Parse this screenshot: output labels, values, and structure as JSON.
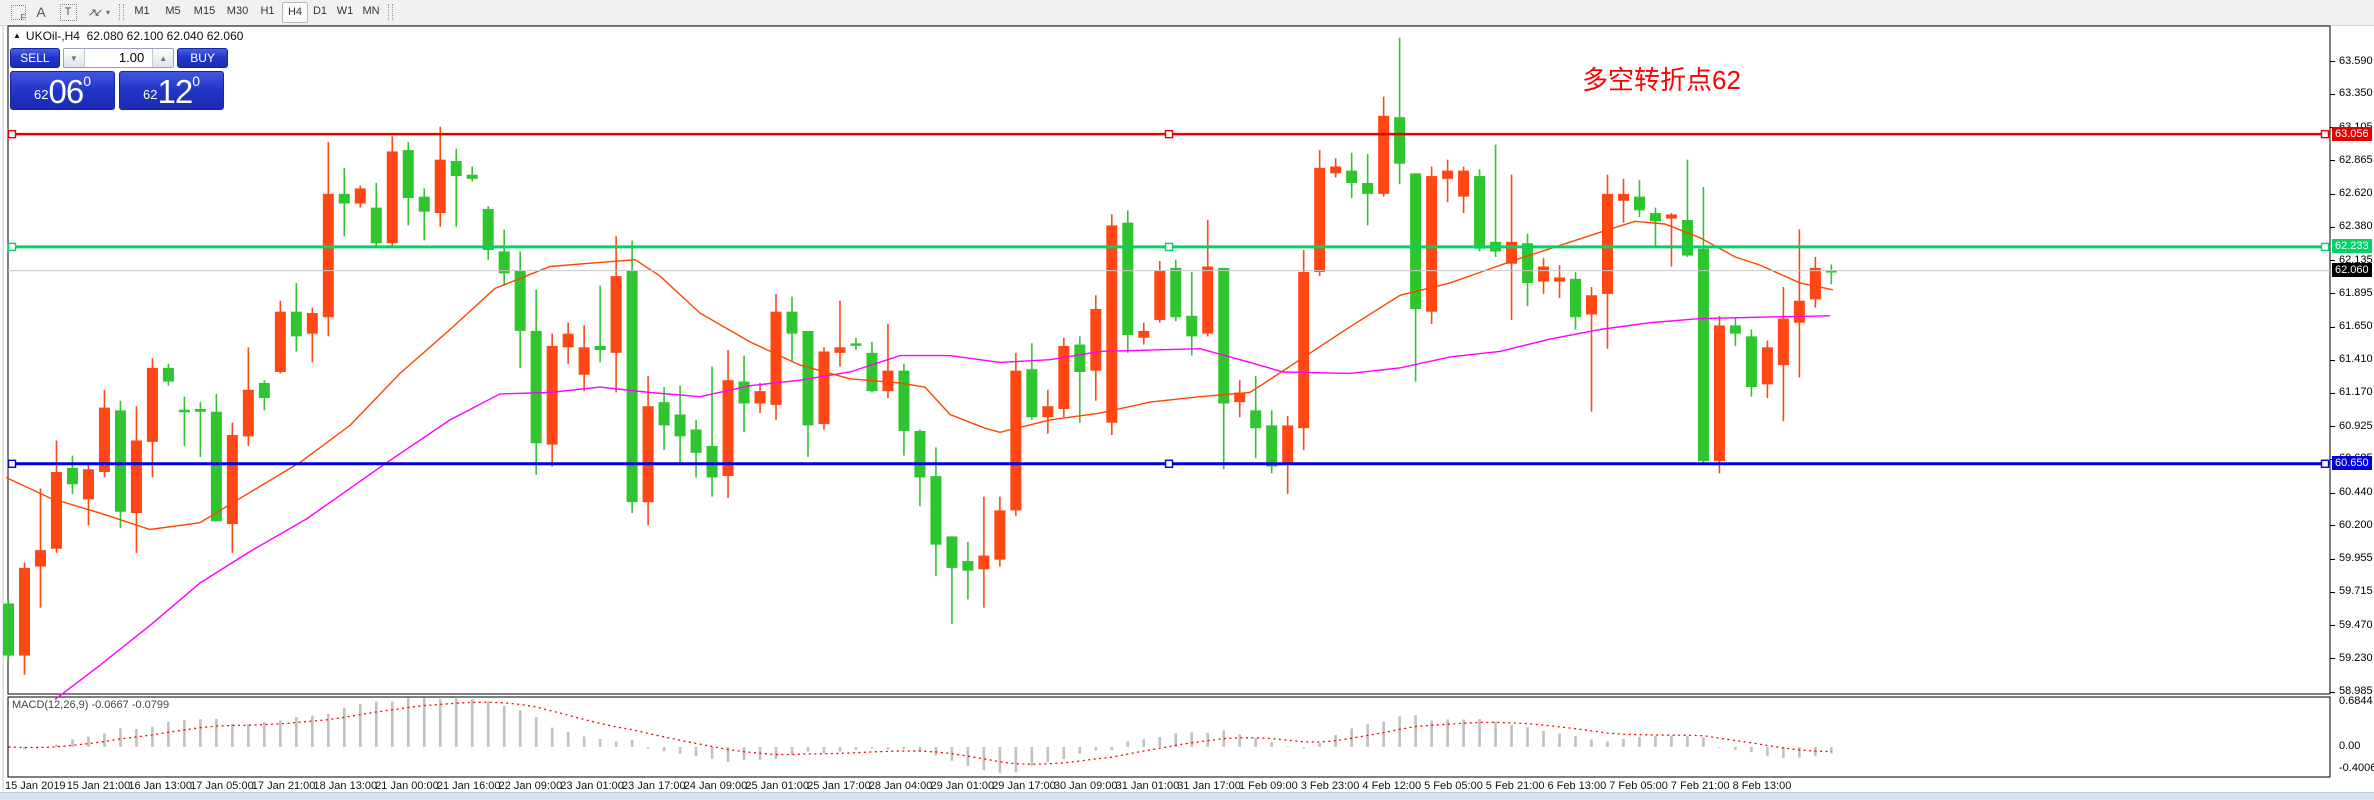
{
  "toolbar": {
    "icons": [
      {
        "name": "indicator-grid-icon",
        "glyph": "F"
      },
      {
        "name": "text-label-icon",
        "glyph": "A"
      },
      {
        "name": "text-box-icon",
        "glyph": "T"
      },
      {
        "name": "arrows-tool-icon",
        "glyph": "↗↙"
      }
    ],
    "timeframes": [
      "M1",
      "M5",
      "M15",
      "M30",
      "H1",
      "H4",
      "D1",
      "W1",
      "MN"
    ],
    "active_timeframe": "H4"
  },
  "quote_bar": {
    "symbol": "UKOil-,H4",
    "ohlc_text": "62.080 62.100 62.040 62.060"
  },
  "trade_panel": {
    "sell_label": "SELL",
    "buy_label": "BUY",
    "volume": "1.00",
    "sell_price": {
      "small": "62",
      "big": "06",
      "sup": "0"
    },
    "buy_price": {
      "small": "62",
      "big": "12",
      "sup": "0"
    }
  },
  "annotation": {
    "text": "多空转折点62",
    "color": "#FF0000"
  },
  "macd_label": "MACD(12,26,9) -0.0667 -0.0799",
  "macd_axis_labels": [
    "0.6844",
    "0.00",
    "-0.4006"
  ],
  "price_axis_labels": [
    "63.590",
    "63.350",
    "63.105",
    "62.865",
    "62.620",
    "62.380",
    "62.135",
    "61.895",
    "61.650",
    "61.410",
    "61.170",
    "60.925",
    "60.685",
    "60.440",
    "60.200",
    "59.955",
    "59.715",
    "59.470",
    "59.230",
    "58.985"
  ],
  "special_price_labels": [
    {
      "value": "63.056",
      "price": 63.056,
      "color": "#e80000"
    },
    {
      "value": "62.233",
      "price": 62.233,
      "color": "#00d464"
    },
    {
      "value": "62.060",
      "price": 62.06,
      "color": "#000000"
    },
    {
      "value": "60.650",
      "price": 60.65,
      "color": "#0000d8"
    }
  ],
  "time_axis_labels": [
    "15 Jan 2019",
    "15 Jan 21:00",
    "16 Jan 13:00",
    "17 Jan 05:00",
    "17 Jan 21:00",
    "18 Jan 13:00",
    "21 Jan 00:00",
    "21 Jan 16:00",
    "22 Jan 09:00",
    "23 Jan 01:00",
    "23 Jan 17:00",
    "24 Jan 09:00",
    "25 Jan 01:00",
    "25 Jan 17:00",
    "28 Jan 04:00",
    "29 Jan 01:00",
    "29 Jan 17:00",
    "30 Jan 09:00",
    "31 Jan 01:00",
    "31 Jan 17:00",
    "1 Feb 09:00",
    "3 Feb 23:00",
    "4 Feb 12:00",
    "5 Feb 05:00",
    "5 Feb 21:00",
    "6 Feb 13:00",
    "7 Feb 05:00",
    "7 Feb 21:00",
    "8 Feb 13:00"
  ],
  "chart_data": {
    "type": "candlestick",
    "symbol": "UKOil-",
    "timeframe": "H4",
    "up_color": "#2fc52f",
    "down_color": "#ff4716",
    "ohlc": [
      [
        59.25,
        59.66,
        59.22,
        59.63
      ],
      [
        59.89,
        59.93,
        59.11,
        59.25
      ],
      [
        60.02,
        60.47,
        59.6,
        59.9
      ],
      [
        60.59,
        60.82,
        60.0,
        60.03
      ],
      [
        60.5,
        60.71,
        60.43,
        60.62
      ],
      [
        60.61,
        60.65,
        60.2,
        60.39
      ],
      [
        61.06,
        61.19,
        60.55,
        60.59
      ],
      [
        60.3,
        61.11,
        60.18,
        61.04
      ],
      [
        60.82,
        61.07,
        60.0,
        60.29
      ],
      [
        61.35,
        61.42,
        60.55,
        60.81
      ],
      [
        61.25,
        61.38,
        61.22,
        61.35
      ],
      [
        61.03,
        61.14,
        60.78,
        61.04
      ],
      [
        61.03,
        61.1,
        60.7,
        61.05
      ],
      [
        60.23,
        61.16,
        60.23,
        61.03
      ],
      [
        60.86,
        60.95,
        60.0,
        60.21
      ],
      [
        61.19,
        61.5,
        60.78,
        60.85
      ],
      [
        61.13,
        61.26,
        61.04,
        61.24
      ],
      [
        61.76,
        61.84,
        61.31,
        61.32
      ],
      [
        61.58,
        61.97,
        61.47,
        61.76
      ],
      [
        61.75,
        61.79,
        61.39,
        61.6
      ],
      [
        62.62,
        63.0,
        61.58,
        61.72
      ],
      [
        62.55,
        62.81,
        62.31,
        62.62
      ],
      [
        62.66,
        62.68,
        62.52,
        62.55
      ],
      [
        62.26,
        62.7,
        62.23,
        62.52
      ],
      [
        62.93,
        63.04,
        62.24,
        62.26
      ],
      [
        62.59,
        63.0,
        62.39,
        62.94
      ],
      [
        62.49,
        62.66,
        62.28,
        62.6
      ],
      [
        62.87,
        63.11,
        62.38,
        62.48
      ],
      [
        62.75,
        62.95,
        62.38,
        62.86
      ],
      [
        62.73,
        62.82,
        62.71,
        62.76
      ],
      [
        62.21,
        62.53,
        62.14,
        62.51
      ],
      [
        62.04,
        62.36,
        61.95,
        62.2
      ],
      [
        61.62,
        62.2,
        61.35,
        62.06
      ],
      [
        60.8,
        61.92,
        60.57,
        61.62
      ],
      [
        61.51,
        61.6,
        60.63,
        60.79
      ],
      [
        61.6,
        61.68,
        61.38,
        61.5
      ],
      [
        61.5,
        61.66,
        61.18,
        61.3
      ],
      [
        61.48,
        61.95,
        61.39,
        61.51
      ],
      [
        62.02,
        62.31,
        61.17,
        61.46
      ],
      [
        60.37,
        62.28,
        60.29,
        62.06
      ],
      [
        61.07,
        61.29,
        60.2,
        60.37
      ],
      [
        60.93,
        61.21,
        60.75,
        61.1
      ],
      [
        60.85,
        61.22,
        60.64,
        61.01
      ],
      [
        60.73,
        60.97,
        60.55,
        60.9
      ],
      [
        60.55,
        61.36,
        60.41,
        60.78
      ],
      [
        61.26,
        61.48,
        60.4,
        60.56
      ],
      [
        61.09,
        61.44,
        60.88,
        61.25
      ],
      [
        61.18,
        61.24,
        61.02,
        61.09
      ],
      [
        61.76,
        61.89,
        60.97,
        61.08
      ],
      [
        61.6,
        61.87,
        61.39,
        61.76
      ],
      [
        60.93,
        61.62,
        60.7,
        61.62
      ],
      [
        61.47,
        61.5,
        60.9,
        60.94
      ],
      [
        61.5,
        61.84,
        61.36,
        61.46
      ],
      [
        61.52,
        61.57,
        61.48,
        61.52
      ],
      [
        61.18,
        61.54,
        61.17,
        61.46
      ],
      [
        61.33,
        61.67,
        61.13,
        61.18
      ],
      [
        60.89,
        61.38,
        60.71,
        61.33
      ],
      [
        60.55,
        60.9,
        60.34,
        60.89
      ],
      [
        60.06,
        60.77,
        59.83,
        60.56
      ],
      [
        59.89,
        60.12,
        59.48,
        60.12
      ],
      [
        59.87,
        60.08,
        59.66,
        59.94
      ],
      [
        59.98,
        60.41,
        59.6,
        59.88
      ],
      [
        60.31,
        60.41,
        59.9,
        59.95
      ],
      [
        61.33,
        61.46,
        60.27,
        60.31
      ],
      [
        60.99,
        61.53,
        60.97,
        61.34
      ],
      [
        61.07,
        61.19,
        60.87,
        60.99
      ],
      [
        61.51,
        61.57,
        60.99,
        61.05
      ],
      [
        61.32,
        61.58,
        60.95,
        61.52
      ],
      [
        61.78,
        61.88,
        61.11,
        61.33
      ],
      [
        62.39,
        62.47,
        60.86,
        60.95
      ],
      [
        61.59,
        62.5,
        61.46,
        62.41
      ],
      [
        61.62,
        61.68,
        61.52,
        61.57
      ],
      [
        62.06,
        62.13,
        61.68,
        61.7
      ],
      [
        61.72,
        62.14,
        61.69,
        62.08
      ],
      [
        61.58,
        62.05,
        61.44,
        61.73
      ],
      [
        62.09,
        62.43,
        61.58,
        61.6
      ],
      [
        61.09,
        62.08,
        60.61,
        62.08
      ],
      [
        61.17,
        61.26,
        60.99,
        61.1
      ],
      [
        60.91,
        61.29,
        60.69,
        61.04
      ],
      [
        60.63,
        61.04,
        60.58,
        60.93
      ],
      [
        60.93,
        61.0,
        60.43,
        60.66
      ],
      [
        62.05,
        62.21,
        60.75,
        60.91
      ],
      [
        62.81,
        62.94,
        62.02,
        62.05
      ],
      [
        62.82,
        62.88,
        62.74,
        62.77
      ],
      [
        62.7,
        62.92,
        62.59,
        62.79
      ],
      [
        62.62,
        62.91,
        62.39,
        62.7
      ],
      [
        63.19,
        63.33,
        62.6,
        62.62
      ],
      [
        62.84,
        63.76,
        62.69,
        63.18
      ],
      [
        61.78,
        62.77,
        61.25,
        62.77
      ],
      [
        62.75,
        62.82,
        61.67,
        61.76
      ],
      [
        62.79,
        62.87,
        62.56,
        62.73
      ],
      [
        62.79,
        62.82,
        62.48,
        62.6
      ],
      [
        62.22,
        62.8,
        62.2,
        62.75
      ],
      [
        62.2,
        62.98,
        62.16,
        62.27
      ],
      [
        62.27,
        62.76,
        61.7,
        62.11
      ],
      [
        61.97,
        62.33,
        61.8,
        62.26
      ],
      [
        62.09,
        62.15,
        61.89,
        61.98
      ],
      [
        62.01,
        62.1,
        61.86,
        61.98
      ],
      [
        61.72,
        62.05,
        61.63,
        62.0
      ],
      [
        61.88,
        61.94,
        61.03,
        61.74
      ],
      [
        62.62,
        62.76,
        61.49,
        61.89
      ],
      [
        62.62,
        62.73,
        62.41,
        62.57
      ],
      [
        62.5,
        62.72,
        62.45,
        62.6
      ],
      [
        62.42,
        62.52,
        62.24,
        62.48
      ],
      [
        62.47,
        62.48,
        62.09,
        62.44
      ],
      [
        62.17,
        62.87,
        62.16,
        62.43
      ],
      [
        60.67,
        62.67,
        60.65,
        62.22
      ],
      [
        61.66,
        61.73,
        60.58,
        60.67
      ],
      [
        61.6,
        61.72,
        61.51,
        61.66
      ],
      [
        61.21,
        61.63,
        61.14,
        61.58
      ],
      [
        61.5,
        61.55,
        61.13,
        61.23
      ],
      [
        61.71,
        61.94,
        60.96,
        61.37
      ],
      [
        61.84,
        62.36,
        61.28,
        61.68
      ],
      [
        62.08,
        62.16,
        61.79,
        61.85
      ],
      [
        62.05,
        62.105,
        61.96,
        62.06
      ]
    ],
    "hlines": [
      {
        "price": 63.056,
        "color": "#e80000",
        "width": 2.5,
        "handles": true
      },
      {
        "price": 62.233,
        "color": "#00d464",
        "width": 3,
        "handles": true
      },
      {
        "price": 60.65,
        "color": "#0000d8",
        "width": 3,
        "handles": true
      },
      {
        "price": 62.06,
        "color": "#c8c8c8",
        "width": 1,
        "handles": false
      }
    ],
    "ma_fast": {
      "color": "#ff4500",
      "points": [
        [
          6,
          60.55
        ],
        [
          50,
          60.4
        ],
        [
          100,
          60.29
        ],
        [
          150,
          60.17
        ],
        [
          200,
          60.22
        ],
        [
          245,
          60.42
        ],
        [
          300,
          60.66
        ],
        [
          350,
          60.93
        ],
        [
          400,
          61.31
        ],
        [
          450,
          61.63
        ],
        [
          495,
          61.93
        ],
        [
          550,
          62.09
        ],
        [
          600,
          62.12
        ],
        [
          635,
          62.14
        ],
        [
          660,
          62.02
        ],
        [
          700,
          61.75
        ],
        [
          750,
          61.54
        ],
        [
          800,
          61.37
        ],
        [
          850,
          61.27
        ],
        [
          900,
          61.24
        ],
        [
          925,
          61.21
        ],
        [
          950,
          61.01
        ],
        [
          985,
          60.91
        ],
        [
          1000,
          60.88
        ],
        [
          1050,
          60.97
        ],
        [
          1100,
          61.02
        ],
        [
          1150,
          61.1
        ],
        [
          1200,
          61.14
        ],
        [
          1250,
          61.17
        ],
        [
          1300,
          61.41
        ],
        [
          1350,
          61.65
        ],
        [
          1400,
          61.88
        ],
        [
          1450,
          61.97
        ],
        [
          1485,
          62.06
        ],
        [
          1520,
          62.15
        ],
        [
          1550,
          62.22
        ],
        [
          1600,
          62.34
        ],
        [
          1635,
          62.42
        ],
        [
          1665,
          62.4
        ],
        [
          1700,
          62.3
        ],
        [
          1735,
          62.16
        ],
        [
          1760,
          62.1
        ],
        [
          1800,
          61.97
        ],
        [
          1833,
          61.92
        ]
      ]
    },
    "ma_slow": {
      "color": "#ff00ff",
      "points": [
        [
          55,
          58.93
        ],
        [
          100,
          59.18
        ],
        [
          150,
          59.47
        ],
        [
          200,
          59.78
        ],
        [
          250,
          60.01
        ],
        [
          307,
          60.25
        ],
        [
          387,
          60.66
        ],
        [
          450,
          60.97
        ],
        [
          500,
          61.16
        ],
        [
          550,
          61.17
        ],
        [
          600,
          61.21
        ],
        [
          650,
          61.17
        ],
        [
          700,
          61.14
        ],
        [
          750,
          61.22
        ],
        [
          800,
          61.26
        ],
        [
          850,
          61.32
        ],
        [
          900,
          61.44
        ],
        [
          950,
          61.44
        ],
        [
          1000,
          61.39
        ],
        [
          1050,
          61.41
        ],
        [
          1100,
          61.47
        ],
        [
          1150,
          61.48
        ],
        [
          1200,
          61.49
        ],
        [
          1250,
          61.39
        ],
        [
          1283,
          61.32
        ],
        [
          1350,
          61.31
        ],
        [
          1400,
          61.35
        ],
        [
          1450,
          61.43
        ],
        [
          1500,
          61.47
        ],
        [
          1550,
          61.56
        ],
        [
          1600,
          61.63
        ],
        [
          1650,
          61.68
        ],
        [
          1700,
          61.71
        ],
        [
          1760,
          61.72
        ],
        [
          1830,
          61.73
        ]
      ]
    },
    "macd": {
      "fast": 12,
      "slow": 26,
      "signal": 9,
      "hist_color": "#c0c0c0",
      "signal_color": "#ff0000",
      "ylim": [
        -0.4006,
        0.6844
      ],
      "last_values": [
        -0.0667,
        -0.0799
      ]
    }
  }
}
